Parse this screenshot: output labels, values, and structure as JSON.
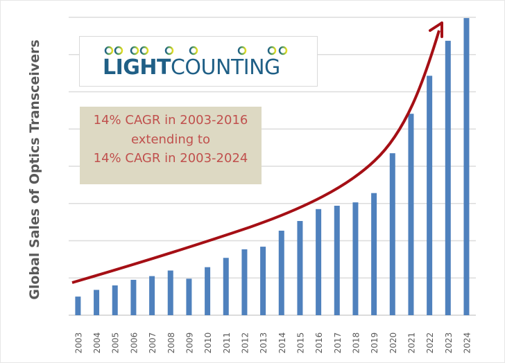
{
  "chart_data": {
    "type": "bar",
    "title": "",
    "xlabel": "",
    "ylabel": "Global Sales of Optics Transceivers",
    "ylim": [
      0,
      8
    ],
    "y_tick_labels": [],
    "grid": true,
    "legend": "none",
    "categories": [
      "2003",
      "2004",
      "2005",
      "2006",
      "2007",
      "2008",
      "2009",
      "2010",
      "2011",
      "2012",
      "2013",
      "2014",
      "2015",
      "2016",
      "2017",
      "2018",
      "2019",
      "2020",
      "2021",
      "2022",
      "2023",
      "2024"
    ],
    "values": [
      0.5,
      0.68,
      0.8,
      0.95,
      1.05,
      1.2,
      0.98,
      1.29,
      1.54,
      1.77,
      1.84,
      2.27,
      2.53,
      2.85,
      2.94,
      3.03,
      3.28,
      4.35,
      5.41,
      6.43,
      7.37,
      7.98
    ],
    "bar_color": "#4f81bd",
    "trend_arrow_color": "#a50f15",
    "annotation": {
      "lines": [
        "14% CAGR in 2003-2016",
        "extending to",
        "14% CAGR in 2003-2024"
      ],
      "text_color": "#c0504d",
      "background": "#ddd9c3"
    }
  },
  "logo": {
    "text_bold": "LIGHT",
    "text_regular": "COUNTING"
  }
}
